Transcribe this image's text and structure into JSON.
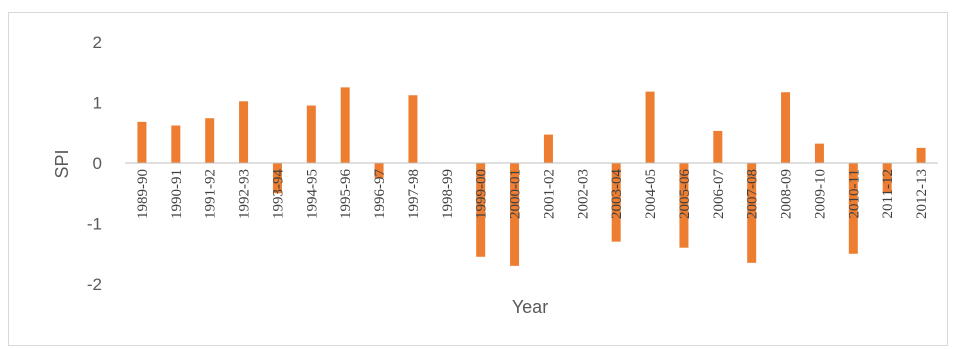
{
  "chart_data": {
    "type": "bar",
    "categories": [
      "1989-90",
      "1990-91",
      "1991-92",
      "1992-93",
      "1993-94",
      "1994-95",
      "1995-96",
      "1996-97",
      "1997-98",
      "1998-99",
      "1999-00",
      "2000-01",
      "2001-02",
      "2002-03",
      "2003-04",
      "2004-05",
      "2005-06",
      "2006-07",
      "2007-08",
      "2008-09",
      "2009-10",
      "2010-11",
      "2011-12",
      "2012-13"
    ],
    "values": [
      0.68,
      0.62,
      0.74,
      1.02,
      -0.5,
      0.95,
      1.25,
      -0.25,
      1.12,
      0,
      -1.55,
      -1.7,
      0.47,
      0,
      -1.3,
      1.18,
      -1.4,
      0.53,
      -1.65,
      1.17,
      0.32,
      -1.5,
      -0.5,
      0.25
    ],
    "xlabel": "Year",
    "ylabel": "SPI",
    "ylim": [
      -2,
      2
    ],
    "yticks": [
      "2",
      "1",
      "0",
      "-1",
      "-2"
    ],
    "bar_color": "#ed7d31",
    "grid": false,
    "legend": "none"
  }
}
